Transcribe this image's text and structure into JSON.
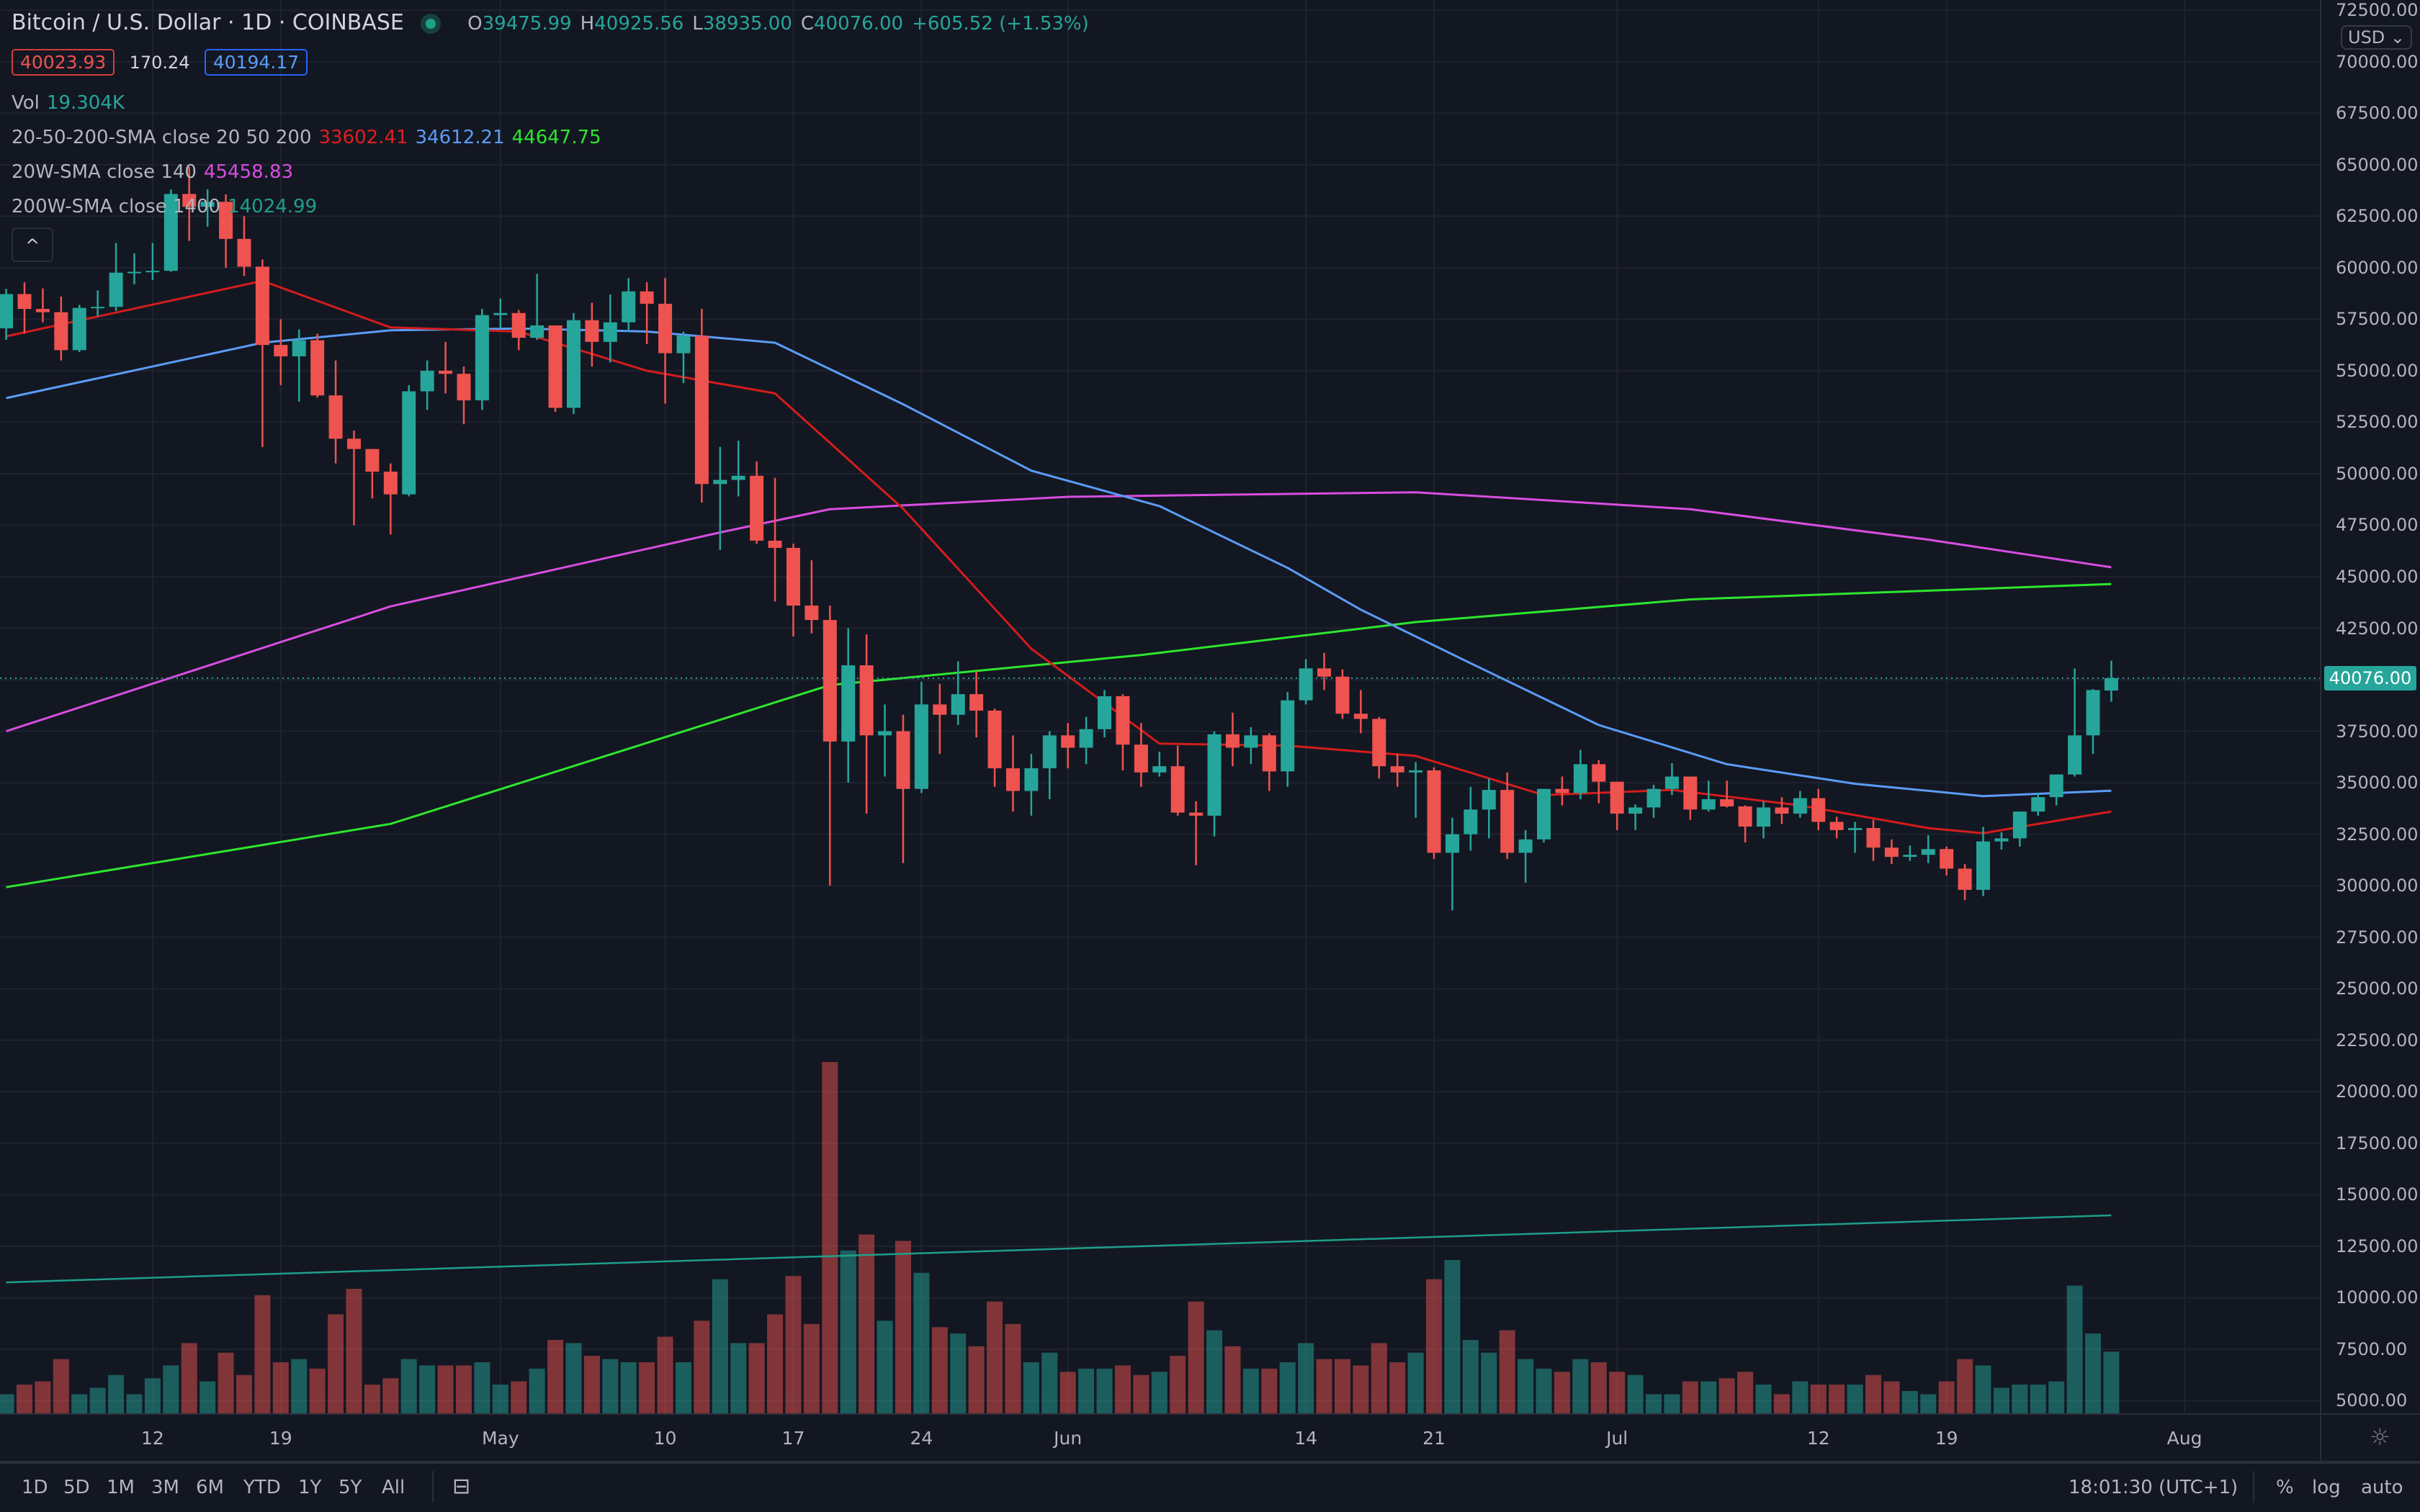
{
  "header": {
    "title": "Bitcoin / U.S. Dollar · 1D · COINBASE",
    "ohlc": [
      {
        "k": "O",
        "v": "39475.99"
      },
      {
        "k": "H",
        "v": "40925.56"
      },
      {
        "k": "L",
        "v": "38935.00"
      },
      {
        "k": "C",
        "v": "40076.00"
      }
    ],
    "change": "+605.52 (+1.53%)",
    "bid": "40023.93",
    "spread": "170.24",
    "ask": "40194.17"
  },
  "indicators": {
    "vol": {
      "label": "Vol",
      "value": "19.304K"
    },
    "sma_20_50_200": {
      "label": "20-50-200-SMA close 20 50 200",
      "v20": "33602.41",
      "v50": "34612.21",
      "v200": "44647.75"
    },
    "sma_20w": {
      "label": "20W-SMA close 140",
      "value": "45458.83"
    },
    "sma_200w": {
      "label": "200W-SMA close 1400",
      "value": "14024.99"
    }
  },
  "colors": {
    "up": "#26a69a",
    "down": "#ef5350",
    "sma20": "#d41c1c",
    "sma50": "#5b9cf6",
    "sma200": "#2ee62e",
    "sma20w": "#d84ee0",
    "vol_ma": "#1e9f8a",
    "background": "#131722"
  },
  "price_axis": {
    "currency": "USD",
    "current_price": "40076.00"
  },
  "time_axis": {
    "ticks": [
      {
        "label": "12",
        "date": "2021-04-12"
      },
      {
        "label": "19",
        "date": "2021-04-19"
      },
      {
        "label": "May",
        "date": "2021-05-01"
      },
      {
        "label": "10",
        "date": "2021-05-10"
      },
      {
        "label": "17",
        "date": "2021-05-17"
      },
      {
        "label": "24",
        "date": "2021-05-24"
      },
      {
        "label": "Jun",
        "date": "2021-06-01"
      },
      {
        "label": "14",
        "date": "2021-06-14"
      },
      {
        "label": "21",
        "date": "2021-06-21"
      },
      {
        "label": "Jul",
        "date": "2021-07-01"
      },
      {
        "label": "12",
        "date": "2021-07-12"
      },
      {
        "label": "19",
        "date": "2021-07-19"
      },
      {
        "label": "Aug",
        "date": "2021-08-01"
      }
    ]
  },
  "toolbar": {
    "ranges": [
      "1D",
      "5D",
      "1M",
      "3M",
      "6M",
      "YTD",
      "1Y",
      "5Y",
      "All"
    ],
    "clock": "18:01:30 (UTC+1)",
    "percent": "%",
    "log": "log",
    "auto": "auto"
  },
  "chart_data": {
    "type": "candlestick",
    "title": "Bitcoin / U.S. Dollar · 1D · COINBASE",
    "ylim": [
      3750,
      72500
    ],
    "yticks": [
      72500,
      70000,
      67500,
      65000,
      62500,
      60000,
      57500,
      55000,
      52500,
      50000,
      47500,
      45000,
      42500,
      40000,
      37500,
      35000,
      32500,
      30000,
      27500,
      25000,
      22500,
      20000,
      17500,
      15000,
      12500,
      10000,
      7500,
      5000
    ],
    "grid": true,
    "candles_columns": [
      "date",
      "open",
      "high",
      "low",
      "close",
      "volume_k"
    ],
    "candles": [
      [
        "2021-04-04",
        57060,
        58970,
        56500,
        58720,
        6
      ],
      [
        "2021-04-05",
        58720,
        59290,
        56800,
        58000,
        9
      ],
      [
        "2021-04-06",
        58000,
        59000,
        57350,
        57840,
        10
      ],
      [
        "2021-04-07",
        57840,
        58600,
        55500,
        56000,
        17
      ],
      [
        "2021-04-08",
        56000,
        58200,
        55900,
        58050,
        6
      ],
      [
        "2021-04-09",
        58050,
        58900,
        57650,
        58100,
        8
      ],
      [
        "2021-04-10",
        58100,
        61200,
        57900,
        59760,
        12
      ],
      [
        "2021-04-11",
        59760,
        60700,
        59200,
        59800,
        6
      ],
      [
        "2021-04-12",
        59800,
        61200,
        59400,
        59850,
        11
      ],
      [
        "2021-04-13",
        59850,
        63800,
        59800,
        63580,
        15
      ],
      [
        "2021-04-14",
        63580,
        64900,
        61300,
        62960,
        22
      ],
      [
        "2021-04-15",
        62960,
        63800,
        62000,
        63200,
        10
      ],
      [
        "2021-04-16",
        63200,
        63560,
        60000,
        61400,
        19
      ],
      [
        "2021-04-17",
        61400,
        62500,
        59600,
        60050,
        12
      ],
      [
        "2021-04-18",
        60050,
        60400,
        51300,
        56250,
        37
      ],
      [
        "2021-04-19",
        56250,
        57500,
        54300,
        55700,
        16
      ],
      [
        "2021-04-20",
        55700,
        57000,
        53500,
        56480,
        17
      ],
      [
        "2021-04-21",
        56480,
        56800,
        53700,
        53800,
        14
      ],
      [
        "2021-04-22",
        53800,
        55500,
        50500,
        51700,
        31
      ],
      [
        "2021-04-23",
        51700,
        52100,
        47500,
        51200,
        39
      ],
      [
        "2021-04-24",
        51200,
        51200,
        48800,
        50100,
        9
      ],
      [
        "2021-04-25",
        50100,
        50500,
        47050,
        49000,
        11
      ],
      [
        "2021-04-26",
        49000,
        54300,
        48900,
        54000,
        17
      ],
      [
        "2021-04-27",
        54000,
        55500,
        53100,
        55000,
        15
      ],
      [
        "2021-04-28",
        55000,
        56400,
        53900,
        54850,
        15
      ],
      [
        "2021-04-29",
        54850,
        55200,
        52400,
        53560,
        15
      ],
      [
        "2021-04-30",
        53560,
        58000,
        53100,
        57700,
        16
      ],
      [
        "2021-05-01",
        57700,
        58500,
        57050,
        57800,
        9
      ],
      [
        "2021-05-02",
        57800,
        57950,
        56000,
        56600,
        10
      ],
      [
        "2021-05-03",
        56600,
        59700,
        56500,
        57200,
        14
      ],
      [
        "2021-05-04",
        57200,
        57200,
        53000,
        53200,
        23
      ],
      [
        "2021-05-05",
        53200,
        57800,
        52900,
        57450,
        22
      ],
      [
        "2021-05-06",
        57450,
        58300,
        55200,
        56400,
        18
      ],
      [
        "2021-05-07",
        56400,
        58700,
        55400,
        57350,
        17
      ],
      [
        "2021-05-08",
        57350,
        59500,
        56900,
        58850,
        16
      ],
      [
        "2021-05-09",
        58850,
        59300,
        56300,
        58250,
        16
      ],
      [
        "2021-05-10",
        58250,
        59500,
        53400,
        55850,
        24
      ],
      [
        "2021-05-11",
        55850,
        56900,
        54400,
        56700,
        16
      ],
      [
        "2021-05-12",
        56700,
        58000,
        48600,
        49500,
        29
      ],
      [
        "2021-05-13",
        49500,
        51300,
        46300,
        49700,
        42
      ],
      [
        "2021-05-14",
        49700,
        51600,
        48900,
        49900,
        22
      ],
      [
        "2021-05-15",
        49900,
        50600,
        46600,
        46750,
        22
      ],
      [
        "2021-05-16",
        46750,
        49800,
        43800,
        46400,
        31
      ],
      [
        "2021-05-17",
        46400,
        46600,
        42100,
        43600,
        43
      ],
      [
        "2021-05-18",
        43600,
        45800,
        42250,
        42900,
        28
      ],
      [
        "2021-05-19",
        42900,
        43600,
        30000,
        37000,
        110
      ],
      [
        "2021-05-20",
        37000,
        42500,
        35000,
        40700,
        51
      ],
      [
        "2021-05-21",
        40700,
        42200,
        33500,
        37300,
        56
      ],
      [
        "2021-05-22",
        37300,
        38800,
        35300,
        37500,
        29
      ],
      [
        "2021-05-23",
        37500,
        38300,
        31100,
        34700,
        54
      ],
      [
        "2021-05-24",
        34700,
        39900,
        34500,
        38800,
        44
      ],
      [
        "2021-05-25",
        38800,
        39800,
        36400,
        38300,
        27
      ],
      [
        "2021-05-26",
        38300,
        40900,
        37800,
        39300,
        25
      ],
      [
        "2021-05-27",
        39300,
        40400,
        37200,
        38500,
        21
      ],
      [
        "2021-05-28",
        38500,
        38600,
        34800,
        35700,
        35
      ],
      [
        "2021-05-29",
        35700,
        37300,
        33600,
        34600,
        28
      ],
      [
        "2021-05-30",
        34600,
        36400,
        33400,
        35700,
        16
      ],
      [
        "2021-05-31",
        35700,
        37500,
        34200,
        37300,
        19
      ],
      [
        "2021-06-01",
        37300,
        37900,
        35700,
        36700,
        13
      ],
      [
        "2021-06-02",
        36700,
        38200,
        35900,
        37600,
        14
      ],
      [
        "2021-06-03",
        37600,
        39500,
        37200,
        39200,
        14
      ],
      [
        "2021-06-04",
        39200,
        39300,
        35600,
        36850,
        15
      ],
      [
        "2021-06-05",
        36850,
        37900,
        34800,
        35500,
        12
      ],
      [
        "2021-06-06",
        35500,
        36500,
        35300,
        35800,
        13
      ],
      [
        "2021-06-07",
        35800,
        36800,
        33400,
        33550,
        18
      ],
      [
        "2021-06-08",
        33550,
        34100,
        31000,
        33400,
        35
      ],
      [
        "2021-06-09",
        33400,
        37500,
        32400,
        37350,
        26
      ],
      [
        "2021-06-10",
        37350,
        38400,
        35800,
        36700,
        21
      ],
      [
        "2021-06-11",
        36700,
        37700,
        35900,
        37300,
        14
      ],
      [
        "2021-06-12",
        37300,
        37400,
        34600,
        35550,
        14
      ],
      [
        "2021-06-13",
        35550,
        39400,
        34800,
        39000,
        16
      ],
      [
        "2021-06-14",
        39000,
        41000,
        38800,
        40550,
        22
      ],
      [
        "2021-06-15",
        40550,
        41300,
        39500,
        40150,
        17
      ],
      [
        "2021-06-16",
        40150,
        40500,
        38100,
        38350,
        17
      ],
      [
        "2021-06-17",
        38350,
        39500,
        37400,
        38100,
        15
      ],
      [
        "2021-06-18",
        38100,
        38200,
        35200,
        35800,
        22
      ],
      [
        "2021-06-19",
        35800,
        36400,
        34800,
        35500,
        16
      ],
      [
        "2021-06-20",
        35500,
        36000,
        33300,
        35600,
        19
      ],
      [
        "2021-06-21",
        35600,
        35750,
        31300,
        31600,
        42
      ],
      [
        "2021-06-22",
        31600,
        33300,
        28800,
        32500,
        48
      ],
      [
        "2021-06-23",
        32500,
        34800,
        31700,
        33700,
        23
      ],
      [
        "2021-06-24",
        33700,
        35200,
        32300,
        34650,
        19
      ],
      [
        "2021-06-25",
        34650,
        35500,
        31300,
        31600,
        26
      ],
      [
        "2021-06-26",
        31600,
        32700,
        30150,
        32250,
        17
      ],
      [
        "2021-06-27",
        32250,
        34700,
        32100,
        34700,
        14
      ],
      [
        "2021-06-28",
        34700,
        35300,
        33900,
        34500,
        13
      ],
      [
        "2021-06-29",
        34500,
        36600,
        34200,
        35900,
        17
      ],
      [
        "2021-06-30",
        35900,
        36100,
        34000,
        35050,
        16
      ],
      [
        "2021-07-01",
        35050,
        35050,
        32700,
        33500,
        13
      ],
      [
        "2021-07-02",
        33500,
        33950,
        32700,
        33800,
        12
      ],
      [
        "2021-07-03",
        33800,
        34900,
        33300,
        34700,
        6
      ],
      [
        "2021-07-04",
        34700,
        35950,
        34400,
        35300,
        6
      ],
      [
        "2021-07-05",
        35300,
        35300,
        33200,
        33700,
        10
      ],
      [
        "2021-07-06",
        33700,
        35100,
        33600,
        34200,
        10
      ],
      [
        "2021-07-07",
        34200,
        35100,
        33800,
        33850,
        11
      ],
      [
        "2021-07-08",
        33850,
        33900,
        32100,
        32870,
        13
      ],
      [
        "2021-07-09",
        32870,
        34100,
        32300,
        33800,
        9
      ],
      [
        "2021-07-10",
        33800,
        34300,
        33000,
        33500,
        6
      ],
      [
        "2021-07-11",
        33500,
        34600,
        33300,
        34250,
        10
      ],
      [
        "2021-07-12",
        34250,
        34700,
        32700,
        33100,
        9
      ],
      [
        "2021-07-13",
        33100,
        33350,
        32300,
        32700,
        9
      ],
      [
        "2021-07-14",
        32700,
        33100,
        31600,
        32800,
        9
      ],
      [
        "2021-07-15",
        32800,
        33200,
        31200,
        31850,
        12
      ],
      [
        "2021-07-16",
        31850,
        32250,
        31050,
        31400,
        10
      ],
      [
        "2021-07-17",
        31400,
        31950,
        31200,
        31500,
        7
      ],
      [
        "2021-07-18",
        31500,
        32450,
        31100,
        31780,
        6
      ],
      [
        "2021-07-19",
        31780,
        31900,
        30500,
        30830,
        10
      ],
      [
        "2021-07-20",
        30830,
        31050,
        29300,
        29800,
        17
      ],
      [
        "2021-07-21",
        29800,
        32850,
        29500,
        32150,
        15
      ],
      [
        "2021-07-22",
        32150,
        32600,
        31750,
        32300,
        8
      ],
      [
        "2021-07-23",
        32300,
        33600,
        31900,
        33600,
        9
      ],
      [
        "2021-07-24",
        33600,
        34500,
        33400,
        34300,
        9
      ],
      [
        "2021-07-25",
        34300,
        35400,
        33900,
        35400,
        10
      ],
      [
        "2021-07-26",
        35400,
        40550,
        35300,
        37300,
        40
      ],
      [
        "2021-07-27",
        37300,
        39550,
        36400,
        39500,
        25
      ],
      [
        "2021-07-28",
        39475.99,
        40925.56,
        38935.0,
        40076.0,
        19.304
      ]
    ],
    "lines": {
      "sma20": [
        [
          "2021-04-04",
          56670
        ],
        [
          "2021-04-18",
          59360
        ],
        [
          "2021-04-25",
          57100
        ],
        [
          "2021-05-02",
          56900
        ],
        [
          "2021-05-09",
          55000
        ],
        [
          "2021-05-16",
          53900
        ],
        [
          "2021-05-23",
          48300
        ],
        [
          "2021-05-30",
          41500
        ],
        [
          "2021-06-06",
          36900
        ],
        [
          "2021-06-13",
          36800
        ],
        [
          "2021-06-20",
          36300
        ],
        [
          "2021-06-27",
          34400
        ],
        [
          "2021-07-04",
          34650
        ],
        [
          "2021-07-11",
          33900
        ],
        [
          "2021-07-18",
          32800
        ],
        [
          "2021-07-21",
          32550
        ],
        [
          "2021-07-28",
          33602.41
        ]
      ],
      "sma50": [
        [
          "2021-04-04",
          53670
        ],
        [
          "2021-04-18",
          56360
        ],
        [
          "2021-04-25",
          56960
        ],
        [
          "2021-05-02",
          57050
        ],
        [
          "2021-05-09",
          56900
        ],
        [
          "2021-05-16",
          56360
        ],
        [
          "2021-05-23",
          53370
        ],
        [
          "2021-05-30",
          50150
        ],
        [
          "2021-06-06",
          48430
        ],
        [
          "2021-06-13",
          45430
        ],
        [
          "2021-06-17",
          43400
        ],
        [
          "2021-06-23",
          40800
        ],
        [
          "2021-06-30",
          37800
        ],
        [
          "2021-07-07",
          35900
        ],
        [
          "2021-07-14",
          34950
        ],
        [
          "2021-07-21",
          34350
        ],
        [
          "2021-07-28",
          34612.21
        ]
      ],
      "sma200": [
        [
          "2021-04-04",
          29930
        ],
        [
          "2021-04-25",
          33000
        ],
        [
          "2021-05-19",
          39740
        ],
        [
          "2021-06-05",
          41200
        ],
        [
          "2021-06-20",
          42800
        ],
        [
          "2021-07-05",
          43900
        ],
        [
          "2021-07-28",
          44647.75
        ]
      ],
      "sma20w": [
        [
          "2021-04-04",
          37500
        ],
        [
          "2021-04-25",
          43560
        ],
        [
          "2021-05-13",
          47150
        ],
        [
          "2021-05-19",
          48280
        ],
        [
          "2021-06-01",
          48880
        ],
        [
          "2021-06-20",
          49100
        ],
        [
          "2021-07-05",
          48280
        ],
        [
          "2021-07-18",
          46800
        ],
        [
          "2021-07-28",
          45458.83
        ]
      ],
      "vol_ma": [
        [
          "2021-04-04",
          41
        ],
        [
          "2021-07-28",
          62
        ]
      ]
    }
  }
}
